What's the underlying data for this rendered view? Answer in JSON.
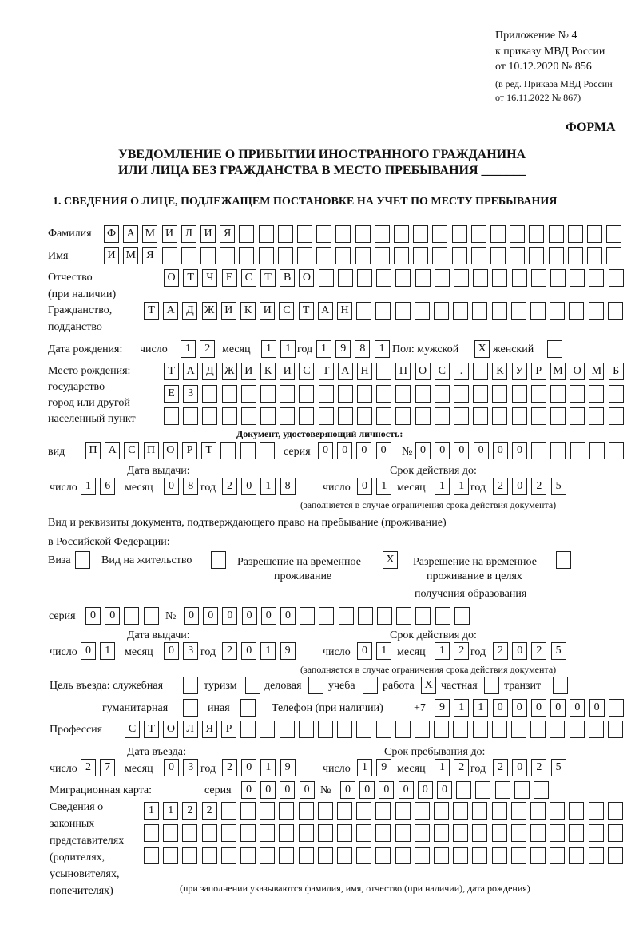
{
  "header": {
    "appendix": "Приложение № 4",
    "order": "к приказу МВД России",
    "order_date": "от 10.12.2020 № 856",
    "amendment_1": "(в ред. Приказа МВД России",
    "amendment_2": "от 16.11.2022 № 867)",
    "form_label": "ФОРМА",
    "title_line1": "УВЕДОМЛЕНИЕ О ПРИБЫТИИ ИНОСТРАННОГО ГРАЖДАНИНА",
    "title_line2": "ИЛИ ЛИЦА БЕЗ ГРАЖДАНСТВА В МЕСТО ПРЕБЫВАНИЯ _______",
    "section1": "1. СВЕДЕНИЯ О ЛИЦЕ, ПОДЛЕЖАЩЕМ ПОСТАНОВКЕ НА УЧЕТ ПО МЕСТУ ПРЕБЫВАНИЯ"
  },
  "labels": {
    "day": "число",
    "month": "месяц",
    "year": "год",
    "series": "серия",
    "number": "№",
    "validity_note": "(заполняется в случае ограничения срока действия документа)",
    "issue_date": "Дата выдачи:",
    "valid_until": "Срок действия до:"
  },
  "person": {
    "surname_label": "Фамилия",
    "surname": "ФАМИЛИЯ",
    "name_label": "Имя",
    "name": "ИМЯ",
    "patronymic_label": "Отчество",
    "patronymic_label2": "(при наличии)",
    "patronymic": "ОТЧЕСТВО",
    "citizenship_label": "Гражданство,",
    "citizenship_label2": "подданство",
    "citizenship": "ТАДЖИКИСТАН",
    "birth_label": "Дата рождения:",
    "birth_day": "12",
    "birth_month": "11",
    "birth_year": "1981",
    "sex_label": "Пол: мужской",
    "sex_male": "X",
    "female_label": "женский",
    "sex_female": "",
    "birthplace_label": "Место рождения:",
    "birthplace_label2": "государство",
    "birthplace_label3": "город или другой",
    "birthplace_label4": "населенный пункт",
    "birthplace_1": "ТАДЖИКИСТАН ПОС. КУРМОМБ",
    "birthplace_2": "ЕЗ",
    "birthplace_3": ""
  },
  "identity_doc": {
    "heading": "Документ, удостоверяющий личность:",
    "type_label": "вид",
    "type": "ПАСПОРТ",
    "series": "0000",
    "number": "000000",
    "issue_day": "16",
    "issue_month": "08",
    "issue_year": "2018",
    "valid_day": "01",
    "valid_month": "11",
    "valid_year": "2025"
  },
  "stay_doc": {
    "heading1": "Вид и реквизиты документа, подтверждающего право на пребывание (проживание)",
    "heading2": "в Российской Федерации:",
    "visa_label": "Виза",
    "visa": "",
    "residence_label": "Вид на жительство",
    "residence": "",
    "temp_label1": "Разрешение на временное",
    "temp_label2": "проживание",
    "temp": "X",
    "edu_label1": "Разрешение на временное",
    "edu_label2": "проживание в целях",
    "edu_label3": "получения образования",
    "edu": "",
    "series": "00",
    "number": "000000",
    "issue_day": "01",
    "issue_month": "03",
    "issue_year": "2019",
    "valid_day": "01",
    "valid_month": "12",
    "valid_year": "2025"
  },
  "purpose": {
    "label": "Цель въезда: служебная",
    "official": "",
    "tourism_label": "туризм",
    "tourism": "",
    "business_label": "деловая",
    "business": "",
    "study_label": "учеба",
    "study": "",
    "work_label": "работа",
    "work": "X",
    "private_label": "частная",
    "private": "",
    "transit_label": "транзит",
    "transit": "",
    "humanitarian_label": "гуманитарная",
    "humanitarian": "",
    "other_label": "иная",
    "other": ""
  },
  "phone": {
    "label": "Телефон (при наличии)",
    "prefix": "+7",
    "value": "911000000"
  },
  "profession": {
    "label": "Профессия",
    "value": "СТОЛЯР"
  },
  "entry": {
    "entry_date_label": "Дата въезда:",
    "stay_until_label": "Срок пребывания до:",
    "entry_day": "27",
    "entry_month": "03",
    "entry_year": "2019",
    "until_day": "19",
    "until_month": "12",
    "until_year": "2025"
  },
  "migration_card": {
    "label": "Миграционная карта:",
    "series": "0000",
    "number": "000000"
  },
  "representatives": {
    "label1": "Сведения о",
    "label2": "законных",
    "label3": "представителях",
    "label4": "(родителях,",
    "label5": "усыновителях,",
    "label6": "попечителях)",
    "row1": "1122",
    "row2": "",
    "row3": "",
    "note": "(при заполнении указываются фамилия, имя, отчество (при наличии), дата рождения)"
  }
}
